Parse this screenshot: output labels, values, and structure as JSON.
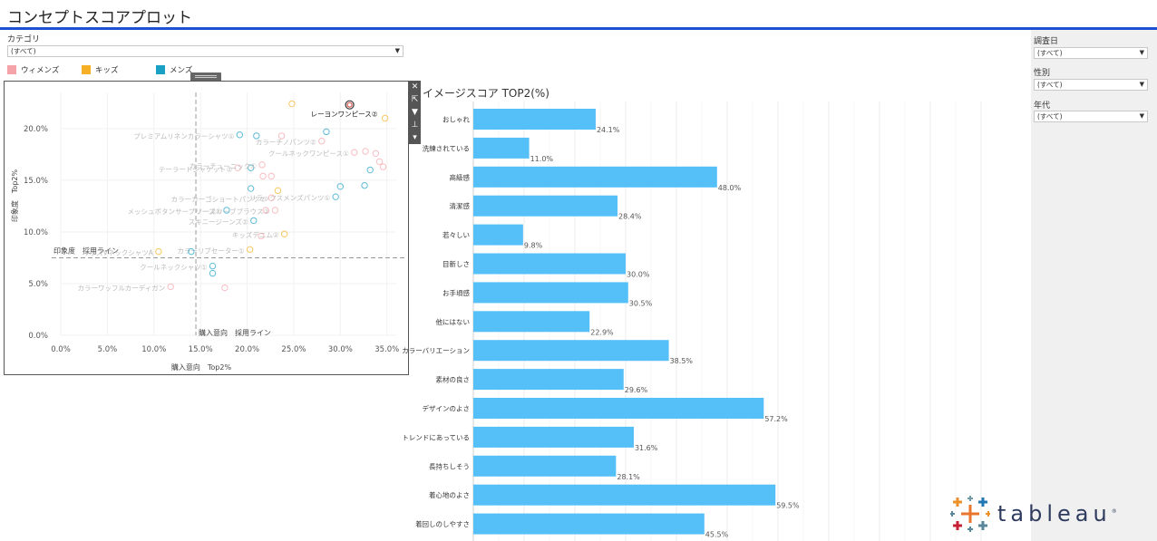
{
  "page_title": "コンセプトスコアプロット",
  "filters": {
    "category": {
      "label": "カテゴリ",
      "value": "(すべて)"
    },
    "survey_date": {
      "label": "調査日",
      "value": "(すべて)"
    },
    "gender": {
      "label": "性別",
      "value": "(すべて)"
    },
    "age": {
      "label": "年代",
      "value": "(すべて)"
    }
  },
  "legend": [
    {
      "label": "ウィメンズ",
      "color": "#f5a3a8"
    },
    {
      "label": "キッズ",
      "color": "#f5b025"
    },
    {
      "label": "メンズ",
      "color": "#1aa0c4"
    }
  ],
  "toolbar_icons": [
    "close-icon",
    "popout-icon",
    "filter-icon",
    "pin-icon",
    "dropdown-icon"
  ],
  "chart_data": [
    {
      "type": "scatter",
      "xlabel": "購入意向　Top2%",
      "ylabel": "印象度　Top2%",
      "xlim": [
        0,
        36
      ],
      "ylim": [
        0,
        23.5
      ],
      "x_ticks": [
        "0.0%",
        "5.0%",
        "10.0%",
        "15.0%",
        "20.0%",
        "25.0%",
        "30.0%",
        "35.0%"
      ],
      "y_ticks": [
        "0.0%",
        "5.0%",
        "10.0%",
        "15.0%",
        "20.0%"
      ],
      "reference_lines": [
        {
          "axis": "x",
          "value": 14.5,
          "label": "購入意向　採用ライン"
        },
        {
          "axis": "y",
          "value": 7.5,
          "label": "印象度　採用ライン"
        }
      ],
      "highlighted": "レーヨンワンピース②",
      "points": [
        {
          "label": "レーヨンワンピース②",
          "x": 31.0,
          "y": 22.3,
          "group": "ウィメンズ"
        },
        {
          "label": "",
          "x": 24.8,
          "y": 22.4,
          "group": "キッズ"
        },
        {
          "label": "",
          "x": 34.8,
          "y": 21.0,
          "group": "キッズ"
        },
        {
          "label": "プレミアムリネンカラーシャツ①",
          "x": 19.2,
          "y": 19.4,
          "group": "メンズ"
        },
        {
          "label": "",
          "x": 21.0,
          "y": 19.3,
          "group": "メンズ"
        },
        {
          "label": "",
          "x": 23.7,
          "y": 19.3,
          "group": "ウィメンズ"
        },
        {
          "label": "",
          "x": 28.5,
          "y": 19.7,
          "group": "メンズ"
        },
        {
          "label": "カラーチノパンツ②",
          "x": 28.0,
          "y": 18.8,
          "group": "ウィメンズ"
        },
        {
          "label": "クールネックワンピース①",
          "x": 31.5,
          "y": 17.7,
          "group": "ウィメンズ"
        },
        {
          "label": "",
          "x": 32.7,
          "y": 17.8,
          "group": "ウィメンズ"
        },
        {
          "label": "",
          "x": 33.8,
          "y": 17.6,
          "group": "ウィメンズ"
        },
        {
          "label": "",
          "x": 34.2,
          "y": 16.8,
          "group": "ウィメンズ"
        },
        {
          "label": "",
          "x": 34.6,
          "y": 16.3,
          "group": "ウィメンズ"
        },
        {
          "label": "",
          "x": 33.2,
          "y": 16.0,
          "group": "メンズ"
        },
        {
          "label": "テーラードジャケット②",
          "x": 19.0,
          "y": 16.2,
          "group": "ウィメンズ"
        },
        {
          "label": "",
          "x": 20.4,
          "y": 16.2,
          "group": "メンズ"
        },
        {
          "label": "カラーチューニック①",
          "x": 21.6,
          "y": 16.5,
          "group": "ウィメンズ"
        },
        {
          "label": "",
          "x": 21.7,
          "y": 15.4,
          "group": "ウィメンズ"
        },
        {
          "label": "",
          "x": 22.6,
          "y": 15.4,
          "group": "ウィメンズ"
        },
        {
          "label": "",
          "x": 20.4,
          "y": 14.2,
          "group": "メンズ"
        },
        {
          "label": "",
          "x": 23.3,
          "y": 14.0,
          "group": "キッズ"
        },
        {
          "label": "",
          "x": 30.0,
          "y": 14.4,
          "group": "メンズ"
        },
        {
          "label": "",
          "x": 32.6,
          "y": 14.5,
          "group": "メンズ"
        },
        {
          "label": "リラックスメンズパンツ①",
          "x": 29.5,
          "y": 13.4,
          "group": "メンズ"
        },
        {
          "label": "カラーカーゴショートパンツ②",
          "x": 22.6,
          "y": 13.3,
          "group": "ウィメンズ"
        },
        {
          "label": "メッシュボタンサープリーズ②",
          "x": 17.8,
          "y": 12.1,
          "group": "メンズ"
        },
        {
          "label": "ノースリーブブラウス②",
          "x": 23.0,
          "y": 12.1,
          "group": "ウィメンズ"
        },
        {
          "label": "",
          "x": 22.0,
          "y": 12.1,
          "group": "ウィメンズ"
        },
        {
          "label": "スキニージーンズ②",
          "x": 20.7,
          "y": 11.1,
          "group": "メンズ"
        },
        {
          "label": "キッズデニム②",
          "x": 24.0,
          "y": 9.8,
          "group": "キッズ"
        },
        {
          "label": "",
          "x": 21.5,
          "y": 9.6,
          "group": "ウィメンズ"
        },
        {
          "label": "カラーリブセーター①",
          "x": 20.3,
          "y": 8.3,
          "group": "キッズ"
        },
        {
          "label": "キッズVネックシャツA",
          "x": 10.5,
          "y": 8.1,
          "group": "キッズ"
        },
        {
          "label": "",
          "x": 14.0,
          "y": 8.1,
          "group": "メンズ"
        },
        {
          "label": "クールネックシャツ①",
          "x": 16.3,
          "y": 6.7,
          "group": "メンズ"
        },
        {
          "label": "",
          "x": 16.3,
          "y": 6.0,
          "group": "メンズ"
        },
        {
          "label": "カラーワッフルカーディガン",
          "x": 11.8,
          "y": 4.7,
          "group": "ウィメンズ"
        },
        {
          "label": "",
          "x": 17.6,
          "y": 4.6,
          "group": "ウィメンズ"
        }
      ]
    },
    {
      "type": "bar",
      "title": "イメージスコア TOP2(%)",
      "categories": [
        "おしゃれ",
        "洗練されている",
        "高級感",
        "清潔感",
        "若々しい",
        "目新しさ",
        "お手頃感",
        "他にはない",
        "カラーバリエーション",
        "素材の良さ",
        "デザインのよさ",
        "トレンドにあっている",
        "長持ちしそう",
        "着心地のよさ",
        "着回しのしやすさ"
      ],
      "values": [
        24.1,
        11.0,
        48.0,
        28.4,
        9.8,
        30.0,
        30.5,
        22.9,
        38.5,
        29.6,
        57.2,
        31.6,
        28.1,
        59.5,
        45.5
      ],
      "value_labels": [
        "24.1%",
        "11.0%",
        "48.0%",
        "28.4%",
        "9.8%",
        "30.0%",
        "30.5%",
        "22.9%",
        "38.5%",
        "29.6%",
        "57.2%",
        "31.6%",
        "28.1%",
        "59.5%",
        "45.5%"
      ],
      "xlim": [
        0,
        100
      ],
      "color": "#55c0f8"
    }
  ],
  "logo": {
    "text": "tableau",
    "mark": "®"
  }
}
